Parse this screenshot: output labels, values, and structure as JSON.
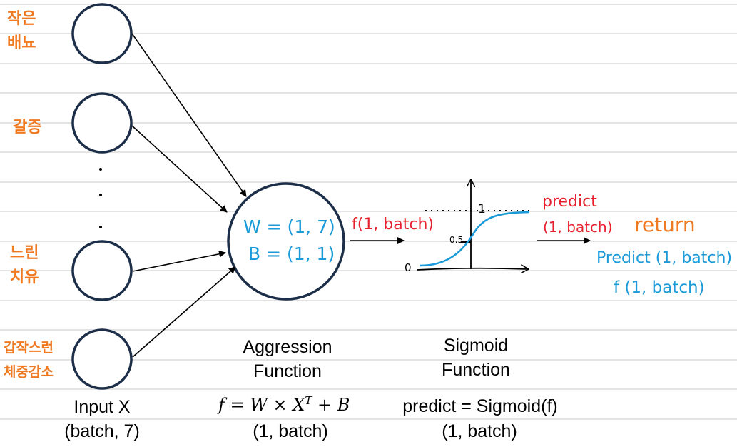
{
  "inputs": {
    "labels": [
      "작은\n배뇨",
      "갈증",
      "느린\n치유",
      "갑작스런\n체중감소"
    ],
    "dots": "·"
  },
  "neuron": {
    "w_label": "W = (1, 7)",
    "b_label": "B = (1, 1)"
  },
  "edge_label": "f(1, batch)",
  "sigmoid_plot": {
    "y_one": "1",
    "y_half": "0.5",
    "origin": "0"
  },
  "output_label": {
    "line1": "predict",
    "line2": "(1, batch)"
  },
  "return_block": {
    "title": "return",
    "line1": "Predict (1, batch)",
    "line2": "f (1, batch)"
  },
  "captions": {
    "input": {
      "line1": "Input X",
      "line2": "(batch, 7)"
    },
    "aggregation": {
      "line1": "Aggression",
      "line2": "Function",
      "formula_left": "f = W × X",
      "formula_sup": "T",
      "formula_right": " + B",
      "shape": "(1, batch)"
    },
    "sigmoid": {
      "line1": "Sigmoid",
      "line2": "Function",
      "formula": "predict = Sigmoid(f)",
      "shape": "(1, batch)"
    }
  }
}
